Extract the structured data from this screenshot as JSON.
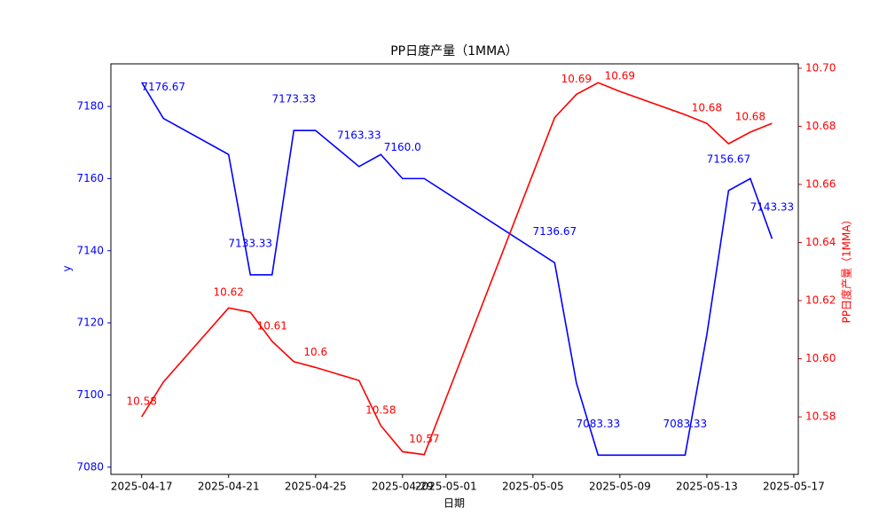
{
  "chart_data": {
    "type": "line",
    "title": "PP日度产量（1MMA）",
    "xlabel": "日期",
    "ylabel": "y",
    "y2label": "PP日度产量（1MMA）",
    "x": [
      "2025-04-17",
      "2025-04-18",
      "2025-04-21",
      "2025-04-22",
      "2025-04-23",
      "2025-04-24",
      "2025-04-25",
      "2025-04-27",
      "2025-04-28",
      "2025-04-29",
      "2025-04-30",
      "2025-05-06",
      "2025-05-07",
      "2025-05-08",
      "2025-05-09",
      "2025-05-12",
      "2025-05-13",
      "2025-05-14",
      "2025-05-15",
      "2025-05-16"
    ],
    "series": [
      {
        "name": "y",
        "color": "#0000ff",
        "values": [
          7186.67,
          7176.67,
          7166.67,
          7133.33,
          7133.33,
          7173.33,
          7173.33,
          7163.33,
          7166.67,
          7160,
          7160,
          7136.67,
          7103.33,
          7083.33,
          7083.33,
          7083.33,
          7116.67,
          7156.67,
          7160,
          7143.33
        ],
        "value_labels": [
          null,
          "7176.67",
          null,
          "7133.33",
          null,
          "7173.33",
          null,
          "7163.33",
          null,
          "7160.0",
          null,
          "7136.67",
          null,
          "7083.33",
          null,
          "7083.33",
          null,
          "7156.67",
          null,
          "7143.33"
        ]
      },
      {
        "name": "PP日度产量（1MMA）",
        "color": "#ff0000",
        "axis": "y2",
        "values": [
          10.58,
          10.592,
          10.6175,
          10.616,
          10.606,
          10.599,
          10.597,
          10.5925,
          10.577,
          10.568,
          10.567,
          10.683,
          10.691,
          10.695,
          10.692,
          10.684,
          10.681,
          10.674,
          10.678,
          10.681
        ],
        "value_labels": [
          "10.58",
          null,
          "10.62",
          null,
          "10.61",
          null,
          "10.6",
          null,
          "10.58",
          null,
          "10.57",
          null,
          "10.69",
          null,
          "10.69",
          null,
          "10.68",
          null,
          "10.68",
          null
        ]
      }
    ],
    "xlim": [
      "2025-04-15T14:00Z",
      "2025-05-17T05:00Z"
    ],
    "xticks": [
      "2025-04-17",
      "2025-04-21",
      "2025-04-25",
      "2025-04-29",
      "2025-05-01",
      "2025-05-05",
      "2025-05-09",
      "2025-05-13",
      "2025-05-17"
    ],
    "ylim": [
      7078,
      7191.8
    ],
    "yticks": [
      7080,
      7100,
      7120,
      7140,
      7160,
      7180
    ],
    "y2lim": [
      10.5602,
      10.7015
    ],
    "y2ticks": [
      10.58,
      {
        "value": 10.6,
        "label": "10.60"
      },
      10.62,
      10.64,
      10.66,
      10.68,
      {
        "value": 10.7,
        "label": "10.70"
      }
    ]
  }
}
